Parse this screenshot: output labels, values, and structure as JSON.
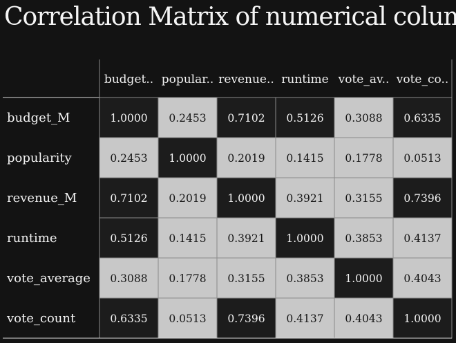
{
  "chart_data": {
    "type": "heatmap",
    "title": "Correlation Matrix of numerical columns",
    "column_labels": [
      "budget..",
      "popular..",
      "revenue..",
      "runtime",
      "vote_av..",
      "vote_co.."
    ],
    "row_labels": [
      "budget_M",
      "popularity",
      "revenue_M",
      "runtime",
      "vote_average",
      "vote_count"
    ],
    "values": [
      [
        "1.0000",
        "0.2453",
        "0.7102",
        "0.5126",
        "0.3088",
        "0.6335"
      ],
      [
        "0.2453",
        "1.0000",
        "0.2019",
        "0.1415",
        "0.1778",
        "0.0513"
      ],
      [
        "0.7102",
        "0.2019",
        "1.0000",
        "0.3921",
        "0.3155",
        "0.7396"
      ],
      [
        "0.5126",
        "0.1415",
        "0.3921",
        "1.0000",
        "0.3853",
        "0.4137"
      ],
      [
        "0.3088",
        "0.1778",
        "0.3155",
        "0.3853",
        "1.0000",
        "0.4043"
      ],
      [
        "0.6335",
        "0.0513",
        "0.7396",
        "0.4137",
        "0.4043",
        "1.0000"
      ]
    ],
    "dark_threshold": 0.5,
    "colors": {
      "background": "#131313",
      "high": "#1c1c1c",
      "low": "#c8c8c8",
      "text_on_high": "#f2f2f2",
      "text_on_low": "#161616",
      "grid": "#8a8a8a"
    }
  }
}
